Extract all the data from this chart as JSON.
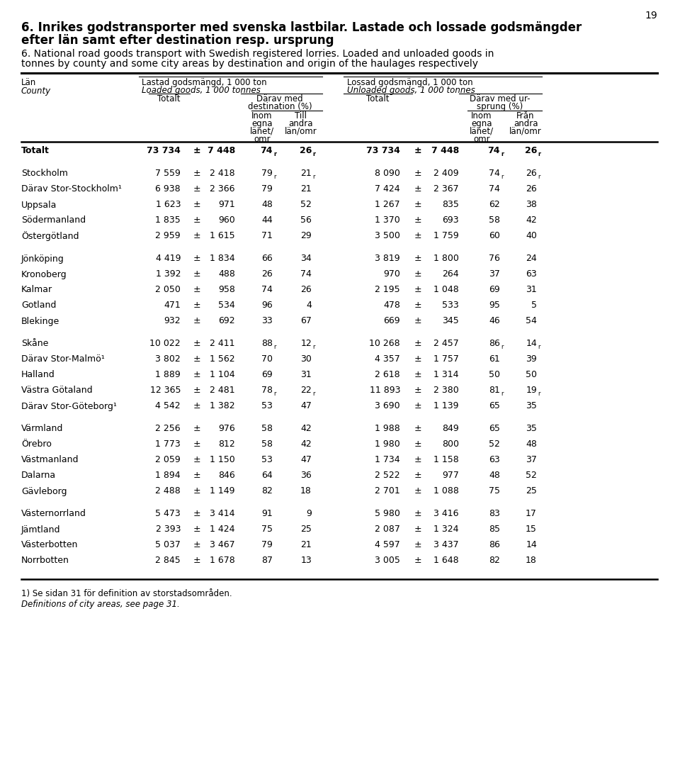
{
  "page_number": "19",
  "title_sv_1": "6. Inrikes godstransporter med svenska lastbilar. Lastade och lossade godsmängder",
  "title_sv_2": "efter län samt efter destination resp. ursprung",
  "title_en_1": "6. National road goods transport with Swedish registered lorries. Loaded and unloaded goods in",
  "title_en_2": "tonnes by county and some city areas by destination and origin of the haulages respectively",
  "footnote_1": "1) Se sidan 31 för definition av storstadsområden.",
  "footnote_2": "Definitions of city areas, see page 31.",
  "rows": [
    {
      "name": "Totalt",
      "bold": true,
      "spacer": false,
      "l_tot": "73 734",
      "l_var": "7 448",
      "l_inom": "74r",
      "l_till": "26r",
      "u_tot": "73 734",
      "u_var": "7 448",
      "u_inom": "74r",
      "u_fran": "26r"
    },
    {
      "name": "",
      "bold": false,
      "spacer": true,
      "l_tot": "",
      "l_var": "",
      "l_inom": "",
      "l_till": "",
      "u_tot": "",
      "u_var": "",
      "u_inom": "",
      "u_fran": ""
    },
    {
      "name": "Stockholm",
      "bold": false,
      "spacer": false,
      "l_tot": "7 559",
      "l_var": "2 418",
      "l_inom": "79r",
      "l_till": "21r",
      "u_tot": "8 090",
      "u_var": "2 409",
      "u_inom": "74r",
      "u_fran": "26r"
    },
    {
      "name": "Därav Stor-Stockholm¹",
      "bold": false,
      "spacer": false,
      "l_tot": "6 938",
      "l_var": "2 366",
      "l_inom": "79",
      "l_till": "21",
      "u_tot": "7 424",
      "u_var": "2 367",
      "u_inom": "74",
      "u_fran": "26"
    },
    {
      "name": "Uppsala",
      "bold": false,
      "spacer": false,
      "l_tot": "1 623",
      "l_var": "971",
      "l_inom": "48",
      "l_till": "52",
      "u_tot": "1 267",
      "u_var": "835",
      "u_inom": "62",
      "u_fran": "38"
    },
    {
      "name": "Södermanland",
      "bold": false,
      "spacer": false,
      "l_tot": "1 835",
      "l_var": "960",
      "l_inom": "44",
      "l_till": "56",
      "u_tot": "1 370",
      "u_var": "693",
      "u_inom": "58",
      "u_fran": "42"
    },
    {
      "name": "Östergötland",
      "bold": false,
      "spacer": false,
      "l_tot": "2 959",
      "l_var": "1 615",
      "l_inom": "71",
      "l_till": "29",
      "u_tot": "3 500",
      "u_var": "1 759",
      "u_inom": "60",
      "u_fran": "40"
    },
    {
      "name": "",
      "bold": false,
      "spacer": true,
      "l_tot": "",
      "l_var": "",
      "l_inom": "",
      "l_till": "",
      "u_tot": "",
      "u_var": "",
      "u_inom": "",
      "u_fran": ""
    },
    {
      "name": "Jönköping",
      "bold": false,
      "spacer": false,
      "l_tot": "4 419",
      "l_var": "1 834",
      "l_inom": "66",
      "l_till": "34",
      "u_tot": "3 819",
      "u_var": "1 800",
      "u_inom": "76",
      "u_fran": "24"
    },
    {
      "name": "Kronoberg",
      "bold": false,
      "spacer": false,
      "l_tot": "1 392",
      "l_var": "488",
      "l_inom": "26",
      "l_till": "74",
      "u_tot": "970",
      "u_var": "264",
      "u_inom": "37",
      "u_fran": "63"
    },
    {
      "name": "Kalmar",
      "bold": false,
      "spacer": false,
      "l_tot": "2 050",
      "l_var": "958",
      "l_inom": "74",
      "l_till": "26",
      "u_tot": "2 195",
      "u_var": "1 048",
      "u_inom": "69",
      "u_fran": "31"
    },
    {
      "name": "Gotland",
      "bold": false,
      "spacer": false,
      "l_tot": "471",
      "l_var": "534",
      "l_inom": "96",
      "l_till": "4",
      "u_tot": "478",
      "u_var": "533",
      "u_inom": "95",
      "u_fran": "5"
    },
    {
      "name": "Blekinge",
      "bold": false,
      "spacer": false,
      "l_tot": "932",
      "l_var": "692",
      "l_inom": "33",
      "l_till": "67",
      "u_tot": "669",
      "u_var": "345",
      "u_inom": "46",
      "u_fran": "54"
    },
    {
      "name": "",
      "bold": false,
      "spacer": true,
      "l_tot": "",
      "l_var": "",
      "l_inom": "",
      "l_till": "",
      "u_tot": "",
      "u_var": "",
      "u_inom": "",
      "u_fran": ""
    },
    {
      "name": "Skåne",
      "bold": false,
      "spacer": false,
      "l_tot": "10 022",
      "l_var": "2 411",
      "l_inom": "88r",
      "l_till": "12r",
      "u_tot": "10 268",
      "u_var": "2 457",
      "u_inom": "86r",
      "u_fran": "14r"
    },
    {
      "name": "Därav Stor-Malmö¹",
      "bold": false,
      "spacer": false,
      "l_tot": "3 802",
      "l_var": "1 562",
      "l_inom": "70",
      "l_till": "30",
      "u_tot": "4 357",
      "u_var": "1 757",
      "u_inom": "61",
      "u_fran": "39"
    },
    {
      "name": "Halland",
      "bold": false,
      "spacer": false,
      "l_tot": "1 889",
      "l_var": "1 104",
      "l_inom": "69",
      "l_till": "31",
      "u_tot": "2 618",
      "u_var": "1 314",
      "u_inom": "50",
      "u_fran": "50"
    },
    {
      "name": "Västra Götaland",
      "bold": false,
      "spacer": false,
      "l_tot": "12 365",
      "l_var": "2 481",
      "l_inom": "78r",
      "l_till": "22r",
      "u_tot": "11 893",
      "u_var": "2 380",
      "u_inom": "81r",
      "u_fran": "19r"
    },
    {
      "name": "Därav Stor-Göteborg¹",
      "bold": false,
      "spacer": false,
      "l_tot": "4 542",
      "l_var": "1 382",
      "l_inom": "53",
      "l_till": "47",
      "u_tot": "3 690",
      "u_var": "1 139",
      "u_inom": "65",
      "u_fran": "35"
    },
    {
      "name": "",
      "bold": false,
      "spacer": true,
      "l_tot": "",
      "l_var": "",
      "l_inom": "",
      "l_till": "",
      "u_tot": "",
      "u_var": "",
      "u_inom": "",
      "u_fran": ""
    },
    {
      "name": "Värmland",
      "bold": false,
      "spacer": false,
      "l_tot": "2 256",
      "l_var": "976",
      "l_inom": "58",
      "l_till": "42",
      "u_tot": "1 988",
      "u_var": "849",
      "u_inom": "65",
      "u_fran": "35"
    },
    {
      "name": "Örebro",
      "bold": false,
      "spacer": false,
      "l_tot": "1 773",
      "l_var": "812",
      "l_inom": "58",
      "l_till": "42",
      "u_tot": "1 980",
      "u_var": "800",
      "u_inom": "52",
      "u_fran": "48"
    },
    {
      "name": "Västmanland",
      "bold": false,
      "spacer": false,
      "l_tot": "2 059",
      "l_var": "1 150",
      "l_inom": "53",
      "l_till": "47",
      "u_tot": "1 734",
      "u_var": "1 158",
      "u_inom": "63",
      "u_fran": "37"
    },
    {
      "name": "Dalarna",
      "bold": false,
      "spacer": false,
      "l_tot": "1 894",
      "l_var": "846",
      "l_inom": "64",
      "l_till": "36",
      "u_tot": "2 522",
      "u_var": "977",
      "u_inom": "48",
      "u_fran": "52"
    },
    {
      "name": "Gävleborg",
      "bold": false,
      "spacer": false,
      "l_tot": "2 488",
      "l_var": "1 149",
      "l_inom": "82",
      "l_till": "18",
      "u_tot": "2 701",
      "u_var": "1 088",
      "u_inom": "75",
      "u_fran": "25"
    },
    {
      "name": "",
      "bold": false,
      "spacer": true,
      "l_tot": "",
      "l_var": "",
      "l_inom": "",
      "l_till": "",
      "u_tot": "",
      "u_var": "",
      "u_inom": "",
      "u_fran": ""
    },
    {
      "name": "Västernorrland",
      "bold": false,
      "spacer": false,
      "l_tot": "5 473",
      "l_var": "3 414",
      "l_inom": "91",
      "l_till": "9",
      "u_tot": "5 980",
      "u_var": "3 416",
      "u_inom": "83",
      "u_fran": "17"
    },
    {
      "name": "Jämtland",
      "bold": false,
      "spacer": false,
      "l_tot": "2 393",
      "l_var": "1 424",
      "l_inom": "75",
      "l_till": "25",
      "u_tot": "2 087",
      "u_var": "1 324",
      "u_inom": "85",
      "u_fran": "15"
    },
    {
      "name": "Västerbotten",
      "bold": false,
      "spacer": false,
      "l_tot": "5 037",
      "l_var": "3 467",
      "l_inom": "79",
      "l_till": "21",
      "u_tot": "4 597",
      "u_var": "3 437",
      "u_inom": "86",
      "u_fran": "14"
    },
    {
      "name": "Norrbotten",
      "bold": false,
      "spacer": false,
      "l_tot": "2 845",
      "l_var": "1 678",
      "l_inom": "87",
      "l_till": "13",
      "u_tot": "3 005",
      "u_var": "1 648",
      "u_inom": "82",
      "u_fran": "18"
    }
  ]
}
